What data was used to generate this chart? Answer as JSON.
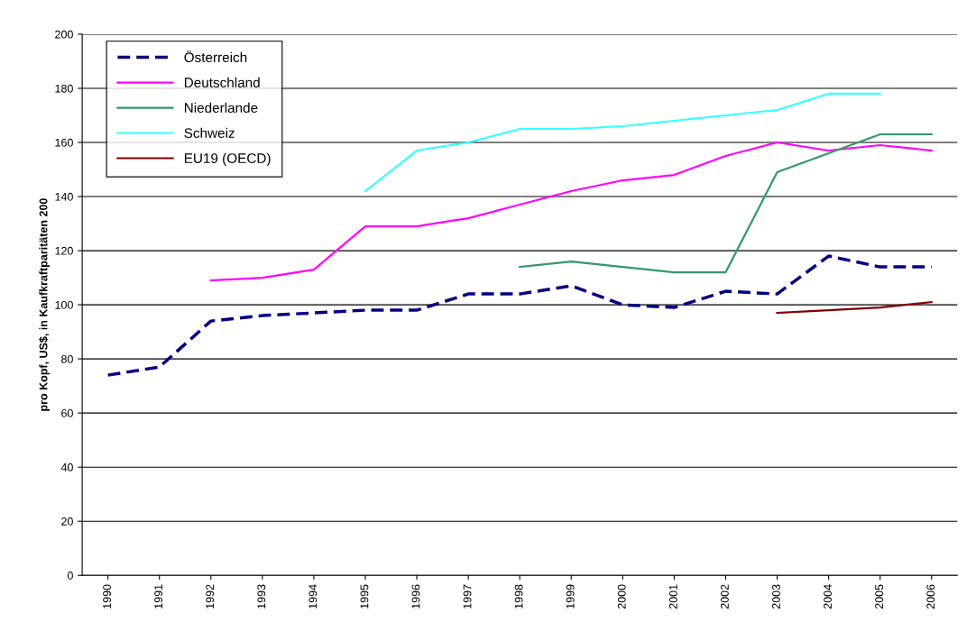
{
  "chart_data": {
    "type": "line",
    "ylabel": "pro Kopf, US$, in Kaufkraftparitäten 200",
    "categories": [
      "1990",
      "1991",
      "1992",
      "1993",
      "1994",
      "1995",
      "1996",
      "1997",
      "1998",
      "1999",
      "2000",
      "2001",
      "2002",
      "2003",
      "2004",
      "2005",
      "2006"
    ],
    "series": [
      {
        "name": "Österreich",
        "color": "#000080",
        "line_style": "dashed",
        "values": [
          74,
          77,
          94,
          96,
          97,
          98,
          98,
          104,
          104,
          107,
          100,
          99,
          105,
          104,
          118,
          114,
          114
        ]
      },
      {
        "name": "Deutschland",
        "color": "#ff00ff",
        "values": [
          null,
          null,
          109,
          110,
          113,
          129,
          129,
          132,
          137,
          142,
          146,
          148,
          155,
          160,
          157,
          159,
          157
        ]
      },
      {
        "name": "Niederlande",
        "color": "#339966",
        "values": [
          null,
          null,
          null,
          null,
          null,
          null,
          null,
          null,
          114,
          116,
          114,
          112,
          112,
          149,
          156,
          163,
          163
        ]
      },
      {
        "name": "Schweiz",
        "color": "#33ffff",
        "values": [
          null,
          null,
          null,
          null,
          null,
          142,
          157,
          160,
          165,
          165,
          166,
          168,
          170,
          172,
          178,
          178,
          null
        ]
      },
      {
        "name": "EU19 (OECD)",
        "color": "#800000",
        "values": [
          null,
          null,
          null,
          null,
          null,
          null,
          null,
          null,
          null,
          null,
          null,
          null,
          null,
          97,
          98,
          99,
          101
        ]
      }
    ],
    "ylim": [
      0,
      200
    ],
    "yticks": [
      0,
      20,
      40,
      60,
      80,
      100,
      120,
      140,
      160,
      180,
      200
    ],
    "grid": "y",
    "legend": "top left",
    "marker": "none"
  }
}
